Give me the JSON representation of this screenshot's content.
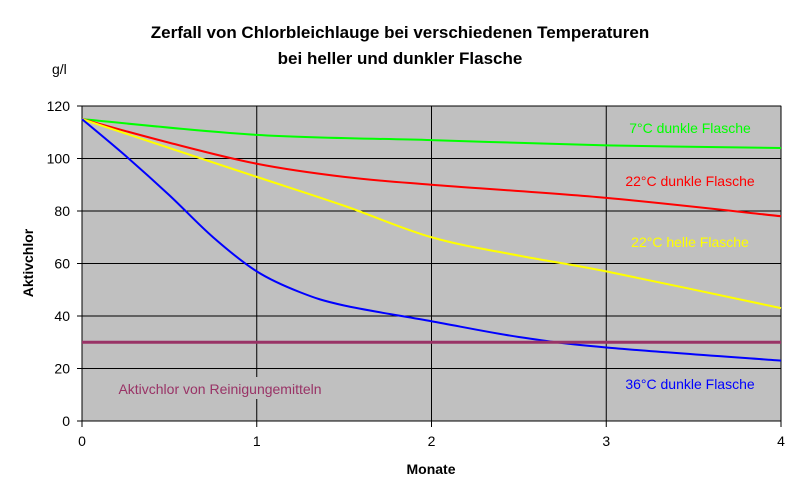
{
  "chart_data": {
    "type": "line",
    "title": [
      "Zerfall von Chlorbleichlauge bei verschiedenen Temperaturen",
      "bei heller und dunkler Flasche"
    ],
    "xlabel": "Monate",
    "ylabel": "Aktivchlor",
    "yunit": "g/l",
    "xlim": [
      0,
      4
    ],
    "ylim": [
      0,
      120
    ],
    "xticks": [
      0,
      1,
      2,
      3,
      4
    ],
    "yticks": [
      0,
      20,
      40,
      60,
      80,
      100,
      120
    ],
    "grid": true,
    "plot_background": "#c0c0c0",
    "series": [
      {
        "name": "7°C dunkle Flasche",
        "color": "#00ff00",
        "x": [
          0,
          1,
          2,
          3,
          4
        ],
        "y": [
          115,
          109,
          107,
          105,
          104
        ]
      },
      {
        "name": "22°C dunkle Flasche",
        "color": "#ff0000",
        "x": [
          0,
          0.5,
          1,
          1.5,
          2,
          3,
          4
        ],
        "y": [
          115,
          106,
          98,
          93,
          90,
          85,
          78
        ]
      },
      {
        "name": "22°C helle Flasche",
        "color": "#ffff00",
        "x": [
          0,
          0.5,
          1,
          1.5,
          2,
          2.5,
          3,
          4
        ],
        "y": [
          115,
          104,
          93,
          82,
          70,
          63,
          57,
          43
        ]
      },
      {
        "name": "36°C dunkle Flasche",
        "color": "#0000ff",
        "x": [
          0,
          0.25,
          0.5,
          0.75,
          1,
          1.25,
          1.5,
          2,
          2.5,
          3,
          4
        ],
        "y": [
          115,
          101,
          86,
          70,
          57,
          49,
          44,
          38,
          32,
          28,
          23
        ]
      },
      {
        "name": "Aktivchlor von Reinigungemitteln",
        "color": "#993366",
        "x": [
          0,
          4
        ],
        "y": [
          30,
          30
        ]
      }
    ]
  }
}
